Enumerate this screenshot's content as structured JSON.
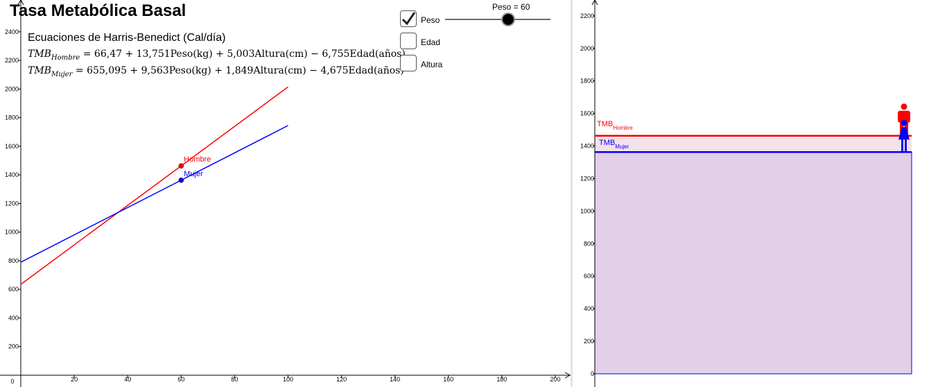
{
  "app": {
    "title": "Tasa Metabólica Basal",
    "subtitle": "Ecuaciones de Harris-Benedict (Cal/día)"
  },
  "equations": {
    "male": {
      "var": "TMB",
      "sub": "Hombre",
      "rhs": "= 66,47 + 13,751Peso(kg) + 5,003Altura(cm) − 6,755Edad(años)"
    },
    "female": {
      "var": "TMB",
      "sub": "Mujer",
      "rhs": "= 655,095 + 9,563Peso(kg) + 1,849Altura(cm) − 4,675Edad(años)"
    }
  },
  "controls": {
    "checkboxes": [
      {
        "label": "Peso",
        "checked": true
      },
      {
        "label": "Edad",
        "checked": false
      },
      {
        "label": "Altura",
        "checked": false
      }
    ],
    "slider": {
      "caption": "Peso = 60",
      "value": 60,
      "min": 0,
      "max": 100
    }
  },
  "colors": {
    "male": "#ff0000",
    "female": "#0000ff",
    "fill": "#e2cfe8"
  },
  "chart_data": [
    {
      "type": "line",
      "x_ticks": [
        0,
        20,
        40,
        60,
        80,
        100,
        120,
        140,
        160,
        180,
        200
      ],
      "y_ticks": [
        200,
        400,
        600,
        800,
        1000,
        1200,
        1400,
        1600,
        1800,
        2000,
        2200,
        2400
      ],
      "xlim": [
        0,
        205
      ],
      "ylim": [
        0,
        2480
      ],
      "series": [
        {
          "name": "Hombre",
          "color": "#ff0000",
          "x": [
            0,
            100
          ],
          "y": [
            635,
            2015
          ]
        },
        {
          "name": "Mujer",
          "color": "#0000ff",
          "x": [
            0,
            100
          ],
          "y": [
            790,
            1745
          ]
        }
      ],
      "points": [
        {
          "label": "Hombre",
          "color": "#ff0000",
          "x": 60,
          "y": 1463
        },
        {
          "label": "Mujer",
          "color": "#0000ff",
          "x": 60,
          "y": 1363
        }
      ]
    },
    {
      "type": "bar",
      "y_ticks": [
        0,
        200,
        400,
        600,
        800,
        1000,
        1200,
        1400,
        1600,
        1800,
        2000,
        2200
      ],
      "ylim": [
        0,
        2290
      ],
      "levels": [
        {
          "label": "TMB",
          "sub": "Hombre",
          "color": "#ff0000",
          "value": 1463
        },
        {
          "label": "TMB",
          "sub": "Mujer",
          "color": "#0000ff",
          "value": 1363
        }
      ]
    }
  ]
}
